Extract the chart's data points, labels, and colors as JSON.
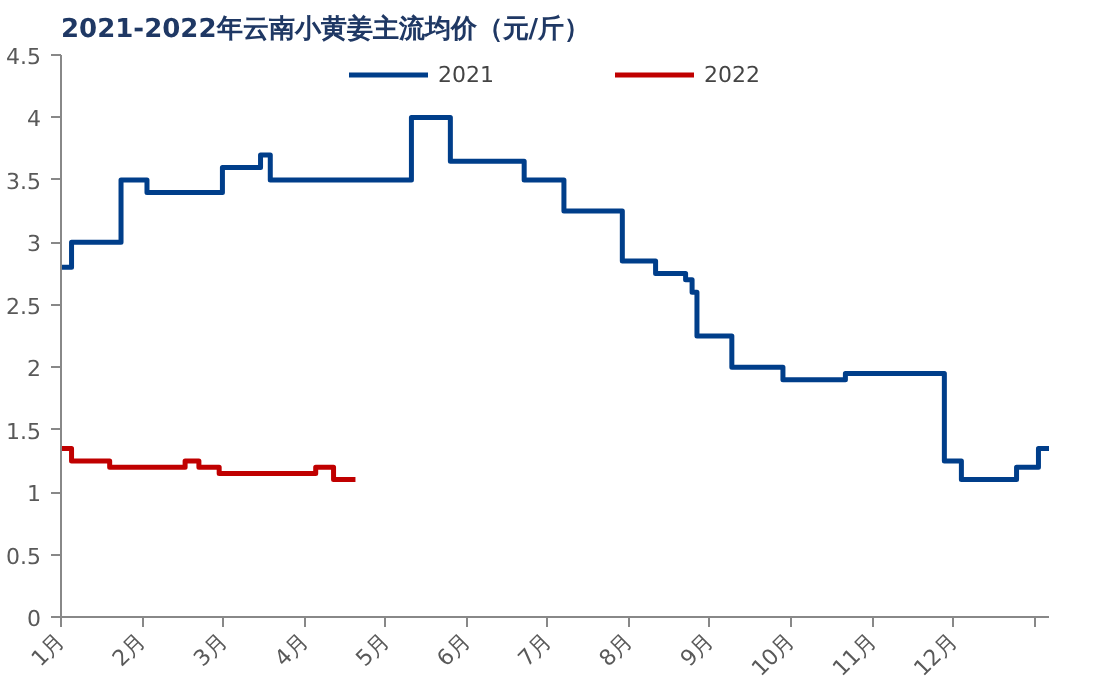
{
  "chart_data": {
    "type": "step",
    "title": "2021-2022年云南小黄姜主流均价（元/斤）",
    "xlim": [
      1,
      13.18
    ],
    "xticks": [
      {
        "value": 1,
        "label": "1月"
      },
      {
        "value": 2,
        "label": "2月"
      },
      {
        "value": 3,
        "label": "3月"
      },
      {
        "value": 4,
        "label": "4月"
      },
      {
        "value": 5,
        "label": "5月"
      },
      {
        "value": 6,
        "label": "6月"
      },
      {
        "value": 7,
        "label": "7月"
      },
      {
        "value": 8,
        "label": "8月"
      },
      {
        "value": 9,
        "label": "9月"
      },
      {
        "value": 10,
        "label": "10月"
      },
      {
        "value": 11,
        "label": "11月"
      },
      {
        "value": 12,
        "label": "12月"
      },
      {
        "value": 13,
        "label": null
      }
    ],
    "ylim": [
      0,
      4.5
    ],
    "yticks": [
      0,
      0.5,
      1,
      1.5,
      2,
      2.5,
      3,
      3.5,
      4,
      4.5
    ],
    "grid": false,
    "legend": "top",
    "line_style": "solid",
    "marker": "none",
    "series": [
      {
        "name": "2021",
        "color": "#003e8a",
        "x": [
          1.0,
          1.13,
          1.74,
          2.06,
          2.99,
          3.46,
          3.58,
          5.32,
          5.8,
          6.71,
          7.2,
          7.92,
          8.33,
          8.7,
          8.78,
          8.84,
          9.27,
          9.9,
          10.67,
          11.89,
          12.1,
          12.78,
          13.05,
          13.18
        ],
        "values": [
          2.8,
          3.0,
          3.5,
          3.4,
          3.6,
          3.7,
          3.5,
          4.0,
          3.65,
          3.5,
          3.25,
          2.85,
          2.75,
          2.7,
          2.6,
          2.25,
          2.0,
          1.9,
          1.95,
          1.25,
          1.1,
          1.2,
          1.35,
          1.35
        ]
      },
      {
        "name": "2022",
        "color": "#c00000",
        "x": [
          1.0,
          1.13,
          1.6,
          2.53,
          2.7,
          2.95,
          4.14,
          4.36,
          4.63
        ],
        "values": [
          1.35,
          1.25,
          1.2,
          1.25,
          1.2,
          1.15,
          1.2,
          1.1,
          1.1
        ]
      }
    ]
  }
}
